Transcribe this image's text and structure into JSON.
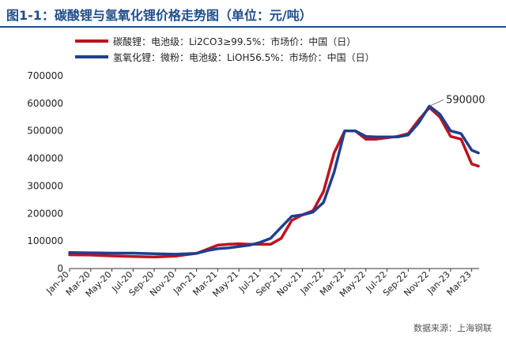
{
  "title": "图1-1：碳酸锂与氢氧化锂价格走势图（单位：元/吨）",
  "source": "数据来源：上海钢联",
  "colors": {
    "series_1": "#c0121e",
    "series_2": "#1f3f8f",
    "title": "#1f4e8c"
  },
  "chart_data": {
    "type": "line",
    "title": "图1-1：碳酸锂与氢氧化锂价格走势图（单位：元/吨）",
    "xlabel": "",
    "ylabel": "",
    "ylim": [
      0,
      700000
    ],
    "yticks": [
      0,
      100000,
      200000,
      300000,
      400000,
      500000,
      600000,
      700000
    ],
    "xticks": [
      "Jan-20",
      "Mar-20",
      "May-20",
      "Jul-20",
      "Sep-20",
      "Nov-20",
      "Jan-21",
      "Mar-21",
      "May-21",
      "Jul-21",
      "Sep-21",
      "Nov-21",
      "Jan-22",
      "Mar-22",
      "May-22",
      "Jul-22",
      "Sep-22",
      "Nov-22",
      "Jan-23",
      "Mar-23"
    ],
    "grid": false,
    "legend_position": "top-left",
    "series": [
      {
        "name": "碳酸锂：电池级：Li2CO3≥99.5%：市场价：中国（日）",
        "color": "#c0121e",
        "points": [
          [
            "2020-01",
            50000
          ],
          [
            "2020-03",
            49000
          ],
          [
            "2020-05",
            46000
          ],
          [
            "2020-07",
            44000
          ],
          [
            "2020-09",
            42000
          ],
          [
            "2020-11",
            45000
          ],
          [
            "2021-01",
            55000
          ],
          [
            "2021-02",
            70000
          ],
          [
            "2021-03",
            85000
          ],
          [
            "2021-04",
            88000
          ],
          [
            "2021-05",
            90000
          ],
          [
            "2021-06",
            88000
          ],
          [
            "2021-07",
            88000
          ],
          [
            "2021-08",
            88000
          ],
          [
            "2021-09",
            110000
          ],
          [
            "2021-10",
            175000
          ],
          [
            "2021-11",
            195000
          ],
          [
            "2021-12",
            210000
          ],
          [
            "2022-01",
            280000
          ],
          [
            "2022-02",
            420000
          ],
          [
            "2022-03",
            500000
          ],
          [
            "2022-04",
            500000
          ],
          [
            "2022-05",
            470000
          ],
          [
            "2022-06",
            470000
          ],
          [
            "2022-07",
            475000
          ],
          [
            "2022-08",
            480000
          ],
          [
            "2022-09",
            490000
          ],
          [
            "2022-10",
            540000
          ],
          [
            "2022-11",
            585000
          ],
          [
            "2022-12",
            550000
          ],
          [
            "2023-01",
            480000
          ],
          [
            "2023-02",
            470000
          ],
          [
            "2023-03",
            380000
          ],
          [
            "2023-03-20",
            372000
          ]
        ]
      },
      {
        "name": "氢氧化锂：微粉：电池级：LiOH56.5%：市场价：中国（日）",
        "color": "#1f3f8f",
        "points": [
          [
            "2020-01",
            58000
          ],
          [
            "2020-03",
            57000
          ],
          [
            "2020-05",
            56000
          ],
          [
            "2020-07",
            56000
          ],
          [
            "2020-09",
            54000
          ],
          [
            "2020-11",
            52000
          ],
          [
            "2021-01",
            55000
          ],
          [
            "2021-02",
            65000
          ],
          [
            "2021-03",
            72000
          ],
          [
            "2021-04",
            75000
          ],
          [
            "2021-05",
            80000
          ],
          [
            "2021-06",
            85000
          ],
          [
            "2021-07",
            95000
          ],
          [
            "2021-08",
            110000
          ],
          [
            "2021-09",
            150000
          ],
          [
            "2021-10",
            190000
          ],
          [
            "2021-11",
            195000
          ],
          [
            "2021-12",
            205000
          ],
          [
            "2022-01",
            240000
          ],
          [
            "2022-02",
            350000
          ],
          [
            "2022-03",
            500000
          ],
          [
            "2022-04",
            500000
          ],
          [
            "2022-05",
            480000
          ],
          [
            "2022-06",
            478000
          ],
          [
            "2022-07",
            478000
          ],
          [
            "2022-08",
            478000
          ],
          [
            "2022-09",
            485000
          ],
          [
            "2022-10",
            530000
          ],
          [
            "2022-11",
            590000
          ],
          [
            "2022-12",
            560000
          ],
          [
            "2023-01",
            500000
          ],
          [
            "2023-02",
            490000
          ],
          [
            "2023-03",
            430000
          ],
          [
            "2023-03-20",
            420000
          ]
        ]
      }
    ],
    "annotations": [
      {
        "text": "590000",
        "x": "2022-11",
        "y": 590000
      }
    ]
  }
}
